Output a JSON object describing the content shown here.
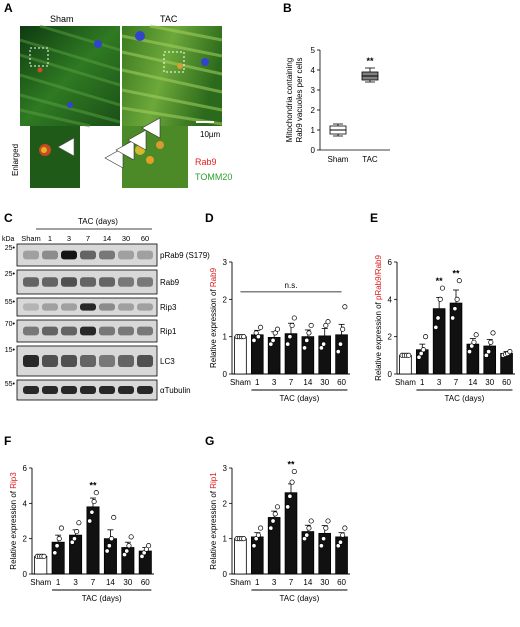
{
  "panels": {
    "A": "A",
    "B": "B",
    "C": "C",
    "D": "D",
    "E": "E",
    "F": "F",
    "G": "G"
  },
  "panel_a": {
    "sham_label": "Sham",
    "tac_label": "TAC",
    "scale_label": "10µm",
    "enlarged_label": "Enlarged",
    "legend": [
      {
        "text": "Rab9",
        "color": "#e02020"
      },
      {
        "text": "TOMM20",
        "color": "#2ca02c"
      }
    ]
  },
  "panel_c": {
    "kda_label": "kDa",
    "tac_days_label": "TAC (days)",
    "lanes": [
      "Sham",
      "1",
      "3",
      "7",
      "14",
      "30",
      "60"
    ],
    "markers": [
      "25",
      "25",
      "55",
      "70",
      "15",
      "55"
    ],
    "proteins": [
      "pRab9 (S179)",
      "Rab9",
      "Rip3",
      "Rip1",
      "LC3",
      "αTubulin"
    ]
  },
  "chart_data": [
    {
      "panel": "B",
      "type": "box",
      "categories": [
        "Sham",
        "TAC"
      ],
      "boxes": [
        {
          "min": 0.7,
          "q1": 0.8,
          "median": 1.0,
          "q3": 1.2,
          "max": 1.3
        },
        {
          "min": 3.4,
          "q1": 3.5,
          "median": 3.7,
          "q3": 3.9,
          "max": 4.1
        }
      ],
      "ylabel_lines": [
        "Mitochondria containing",
        "Rab9 vacuoles per cells"
      ],
      "ylim": [
        0,
        5
      ],
      "yticks": [
        "0",
        "1",
        "2",
        "3",
        "4",
        "5"
      ],
      "annotations": [
        {
          "category": "TAC",
          "text": "**"
        }
      ],
      "colors": [
        "#ffffff",
        "#808080"
      ]
    },
    {
      "panel": "D",
      "type": "bar",
      "categories": [
        "Sham",
        "1",
        "3",
        "7",
        "14",
        "30",
        "60"
      ],
      "values": [
        1.0,
        1.05,
        0.98,
        1.08,
        1.0,
        1.02,
        1.05
      ],
      "errors": [
        0.02,
        0.12,
        0.15,
        0.28,
        0.18,
        0.2,
        0.28
      ],
      "points": [
        [
          1,
          1,
          1,
          1
        ],
        [
          0.9,
          1.1,
          1.0,
          1.25
        ],
        [
          0.8,
          0.9,
          1.1,
          1.2
        ],
        [
          0.8,
          1.0,
          1.3,
          1.5
        ],
        [
          0.7,
          0.9,
          1.1,
          1.3
        ],
        [
          0.7,
          0.8,
          1.3,
          1.4
        ],
        [
          0.6,
          0.8,
          1.2,
          1.8
        ]
      ],
      "ylabel_prefix": "Relative expression of ",
      "ylabel_target": "Rab9",
      "ylim": [
        0,
        3
      ],
      "yticks": [
        "0",
        "1",
        "2",
        "3"
      ],
      "xlabel": "TAC (days)",
      "annotations": [
        {
          "text": "n.s.",
          "type": "bracket"
        }
      ]
    },
    {
      "panel": "E",
      "type": "bar",
      "categories": [
        "Sham",
        "1",
        "3",
        "7",
        "14",
        "30",
        "60"
      ],
      "values": [
        1.0,
        1.3,
        3.5,
        3.8,
        1.6,
        1.5,
        1.1
      ],
      "errors": [
        0.05,
        0.3,
        0.6,
        0.7,
        0.3,
        0.35,
        0.1
      ],
      "points": [
        [
          1,
          1,
          1,
          1
        ],
        [
          0.9,
          1.1,
          1.3,
          2.0
        ],
        [
          2.5,
          3.0,
          4.0,
          4.6
        ],
        [
          3.0,
          3.5,
          4.0,
          5.0
        ],
        [
          1.2,
          1.5,
          1.7,
          2.1
        ],
        [
          1.0,
          1.2,
          1.7,
          2.2
        ],
        [
          1.0,
          1.05,
          1.1,
          1.2
        ]
      ],
      "ylabel_prefix": "Relative expression of ",
      "ylabel_target": "pRab9/Rab9",
      "ylim": [
        0,
        6
      ],
      "yticks": [
        "0",
        "2",
        "4",
        "6"
      ],
      "xlabel": "TAC (days)",
      "annotations": [
        {
          "category": "3",
          "text": "**"
        },
        {
          "category": "7",
          "text": "**"
        }
      ]
    },
    {
      "panel": "F",
      "type": "bar",
      "categories": [
        "Sham",
        "1",
        "3",
        "7",
        "14",
        "30",
        "60"
      ],
      "values": [
        1.0,
        1.8,
        2.2,
        3.8,
        2.0,
        1.5,
        1.3
      ],
      "errors": [
        0.03,
        0.4,
        0.3,
        0.5,
        0.5,
        0.3,
        0.2
      ],
      "points": [
        [
          1,
          1,
          1,
          1
        ],
        [
          1.2,
          1.6,
          2.0,
          2.6
        ],
        [
          1.8,
          2.0,
          2.4,
          2.9
        ],
        [
          3.0,
          3.5,
          4.1,
          4.6
        ],
        [
          1.3,
          1.6,
          2.0,
          3.2
        ],
        [
          1.1,
          1.3,
          1.6,
          2.1
        ],
        [
          1.0,
          1.2,
          1.4,
          1.6
        ]
      ],
      "ylabel_prefix": "Relative expression of ",
      "ylabel_target": "Rip3",
      "ylim": [
        0,
        6
      ],
      "yticks": [
        "0",
        "2",
        "4",
        "6"
      ],
      "xlabel": "TAC (days)",
      "annotations": [
        {
          "category": "7",
          "text": "**"
        }
      ]
    },
    {
      "panel": "G",
      "type": "bar",
      "categories": [
        "Sham",
        "1",
        "3",
        "7",
        "14",
        "30",
        "60"
      ],
      "values": [
        1.0,
        1.05,
        1.6,
        2.3,
        1.2,
        1.15,
        1.05
      ],
      "errors": [
        0.03,
        0.12,
        0.18,
        0.25,
        0.18,
        0.22,
        0.12
      ],
      "points": [
        [
          1,
          1,
          1,
          1
        ],
        [
          0.8,
          1.0,
          1.1,
          1.3
        ],
        [
          1.3,
          1.5,
          1.7,
          1.9
        ],
        [
          1.9,
          2.2,
          2.6,
          2.9
        ],
        [
          1.0,
          1.1,
          1.3,
          1.5
        ],
        [
          0.8,
          1.0,
          1.3,
          1.5
        ],
        [
          0.8,
          0.9,
          1.1,
          1.3
        ]
      ],
      "ylabel_prefix": "Relative expression of ",
      "ylabel_target": "Rip1",
      "ylim": [
        0,
        3
      ],
      "yticks": [
        "0",
        "1",
        "2",
        "3"
      ],
      "xlabel": "TAC (days)",
      "annotations": [
        {
          "category": "7",
          "text": "**"
        }
      ]
    }
  ],
  "colors": {
    "accent_red": "#e02020",
    "sham_bar": "#ffffff",
    "tac_bar": "#111111"
  }
}
